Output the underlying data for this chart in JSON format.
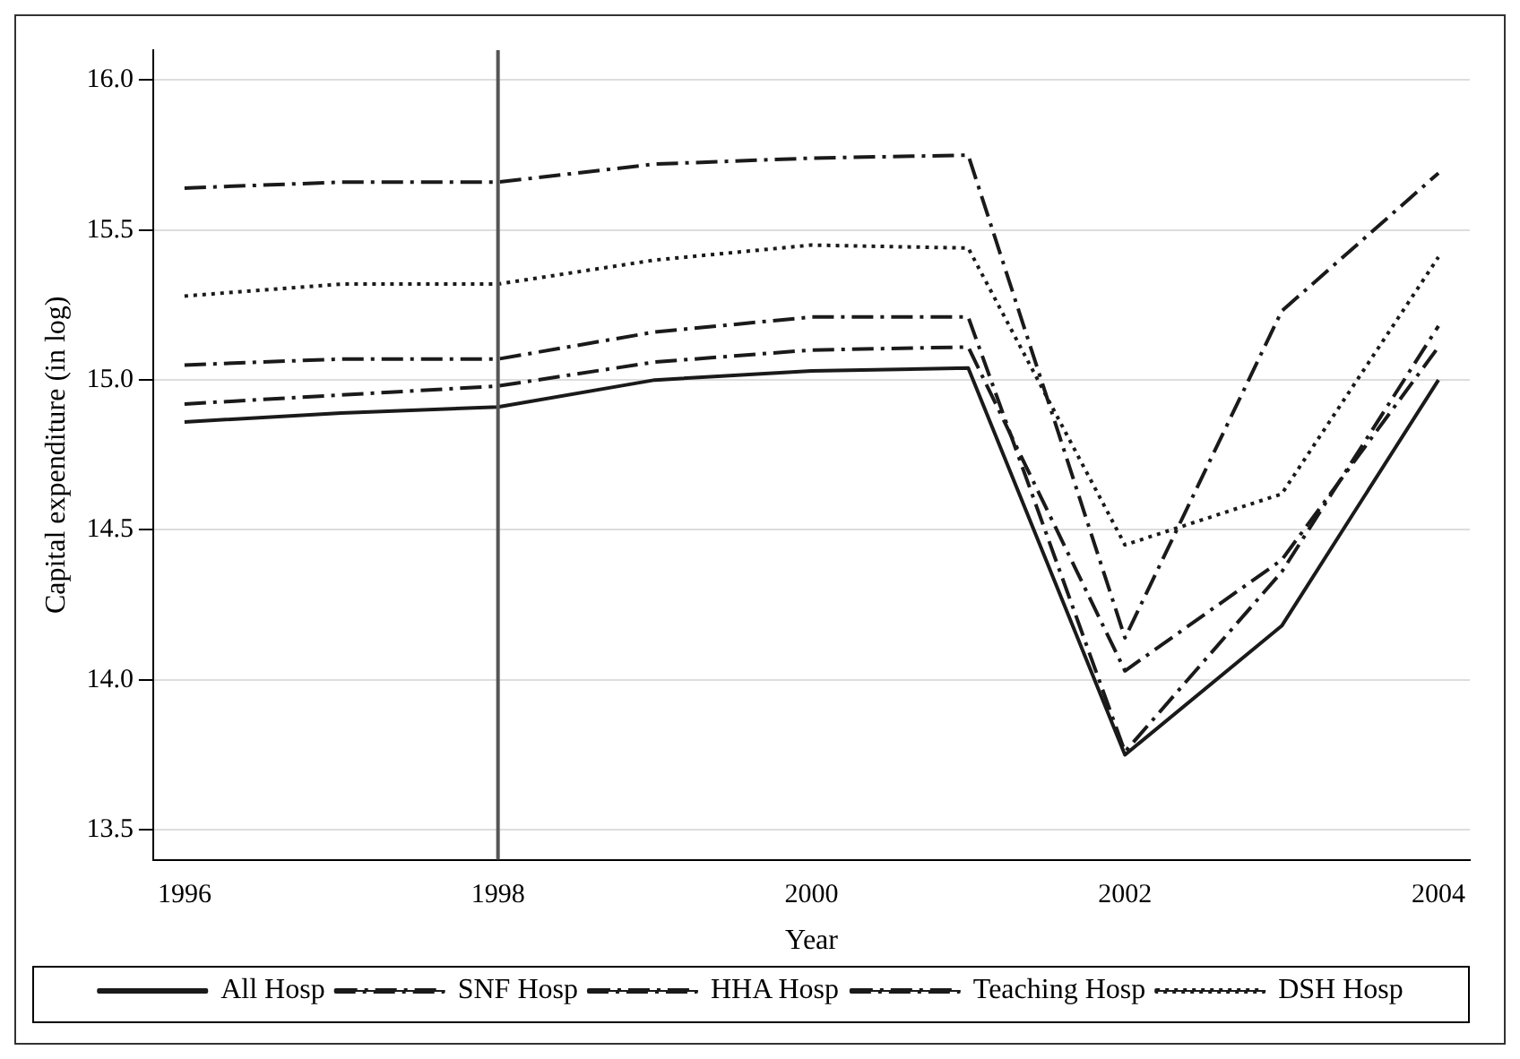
{
  "chart_data": {
    "type": "line",
    "xlabel": "Year",
    "ylabel": "Capital expenditure (in log)",
    "x": [
      1996,
      1997,
      1998,
      1999,
      2000,
      2001,
      2002,
      2003,
      2004
    ],
    "xlim": [
      1995.8,
      2004.2
    ],
    "xticks": [
      1996,
      1998,
      2000,
      2002,
      2004
    ],
    "ylim": [
      13.4,
      16.1
    ],
    "yticks": [
      13.5,
      {
        "value": 14,
        "label": "14.0"
      },
      14.5,
      {
        "value": 15,
        "label": "15.0"
      },
      15.5,
      {
        "value": 16,
        "label": "16.0"
      }
    ],
    "grid": "y",
    "legend": "bottom",
    "marker": "none",
    "ref_lines": [
      {
        "axis": "x",
        "value": 1998,
        "color": "#555555"
      }
    ],
    "series": [
      {
        "name": "All Hosp",
        "color": "#1a1a1a",
        "line_style": "solid",
        "values": [
          14.86,
          14.89,
          14.91,
          15.0,
          15.03,
          15.04,
          13.75,
          14.18,
          15.0
        ]
      },
      {
        "name": "SNF Hosp",
        "color": "#1a1a1a",
        "line_style": "dashed",
        "values": [
          15.05,
          15.07,
          15.07,
          15.16,
          15.21,
          15.21,
          13.76,
          14.36,
          15.18
        ]
      },
      {
        "name": "HHA Hosp",
        "color": "#1a1a1a",
        "line_style": "dashed",
        "values": [
          14.92,
          14.95,
          14.98,
          15.06,
          15.1,
          15.11,
          14.03,
          14.4,
          15.11
        ]
      },
      {
        "name": "Teaching Hosp",
        "color": "#1a1a1a",
        "line_style": "dashed",
        "values": [
          15.64,
          15.66,
          15.66,
          15.72,
          15.74,
          15.75,
          14.14,
          15.23,
          15.69
        ]
      },
      {
        "name": "DSH Hosp",
        "color": "#1a1a1a",
        "line_style": "dotted",
        "values": [
          15.28,
          15.32,
          15.32,
          15.4,
          15.45,
          15.44,
          14.45,
          14.62,
          15.41
        ]
      }
    ]
  }
}
